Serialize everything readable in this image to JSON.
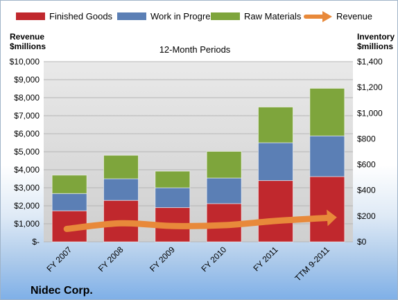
{
  "chart_data": {
    "type": "bar",
    "subtitle": "12-Month Periods",
    "company": "Nidec Corp.",
    "categories": [
      "FY 2007",
      "FY 2008",
      "FY 2009",
      "FY 2010",
      "FY 2011",
      "TTM 9-2011"
    ],
    "left_axis": {
      "label_line1": "Revenue",
      "label_line2": "$millions",
      "range": [
        0,
        10000
      ],
      "step": 1000,
      "ticks": [
        "$-",
        "$1,000",
        "$2,000",
        "$3,000",
        "$4,000",
        "$5,000",
        "$6,000",
        "$7,000",
        "$8,000",
        "$9,000",
        "$10,000"
      ]
    },
    "right_axis": {
      "label_line1": "Inventory",
      "label_line2": "$millions",
      "range": [
        0,
        1400
      ],
      "step": 200,
      "ticks": [
        "$0",
        "$200",
        "$400",
        "$600",
        "$800",
        "$1,000",
        "$1,200",
        "$1,400"
      ]
    },
    "stacked_series": [
      {
        "name": "Finished Goods",
        "color": "#c0282d",
        "values": [
          1720,
          2300,
          1900,
          2120,
          3400,
          3620
        ]
      },
      {
        "name": "Work in Progress",
        "color": "#5b7fb5",
        "values": [
          960,
          1200,
          1100,
          1420,
          2100,
          2260
        ]
      },
      {
        "name": "Raw Materials",
        "color": "#7ea53c",
        "values": [
          1020,
          1300,
          920,
          1480,
          1980,
          2640
        ]
      }
    ],
    "line_series": {
      "name": "Revenue",
      "color": "#e8893a",
      "axis": "right",
      "values": [
        100,
        144,
        123,
        129,
        162,
        186
      ]
    },
    "legend_position": "top",
    "grid": true
  }
}
